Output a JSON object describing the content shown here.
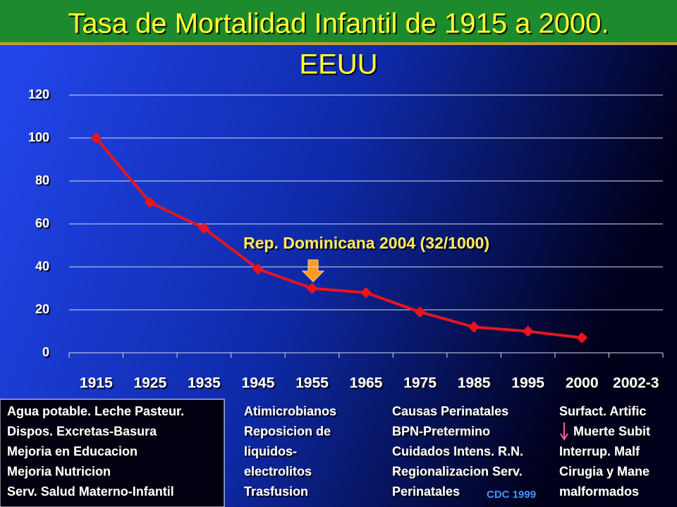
{
  "chart_data": {
    "type": "line",
    "title": "Tasa de Mortalidad Infantil de 1915 a 2000.",
    "subtitle": "EEUU",
    "categories": [
      "1915",
      "1925",
      "1935",
      "1945",
      "1955",
      "1965",
      "1975",
      "1985",
      "1995",
      "2000",
      "2002-3"
    ],
    "series": [
      {
        "name": "EEUU",
        "color": "#e8141e",
        "values": [
          100,
          70,
          58,
          39,
          30,
          28,
          19,
          12,
          10,
          7,
          null
        ]
      }
    ],
    "ylim": [
      0,
      120
    ],
    "yticks": [
      0,
      20,
      40,
      60,
      80,
      100,
      120
    ],
    "grid": true,
    "legend": false,
    "annotation": "Rep. Dominicana 2004 (32/1000)",
    "notes": [
      [
        "Agua potable. Leche Pasteur.",
        "Dispos. Excretas-Basura",
        "Mejoria en Educacion",
        "Mejoria Nutricion",
        "Serv. Salud Materno-Infantil"
      ],
      [
        "Atimicrobianos",
        "Reposicion de",
        "liquidos-",
        "electrolitos",
        "Trasfusion"
      ],
      [
        "Causas Perinatales",
        "BPN-Pretermino",
        "Cuidados Intens. R.N.",
        "Regionalizacion Serv.",
        "Perinatales"
      ],
      [
        "Surfact.  Artific",
        "Muerte Subit",
        "Interrup. Malf",
        "Cirugia y Mane",
        "malformados"
      ]
    ],
    "source": "CDC 1999"
  }
}
